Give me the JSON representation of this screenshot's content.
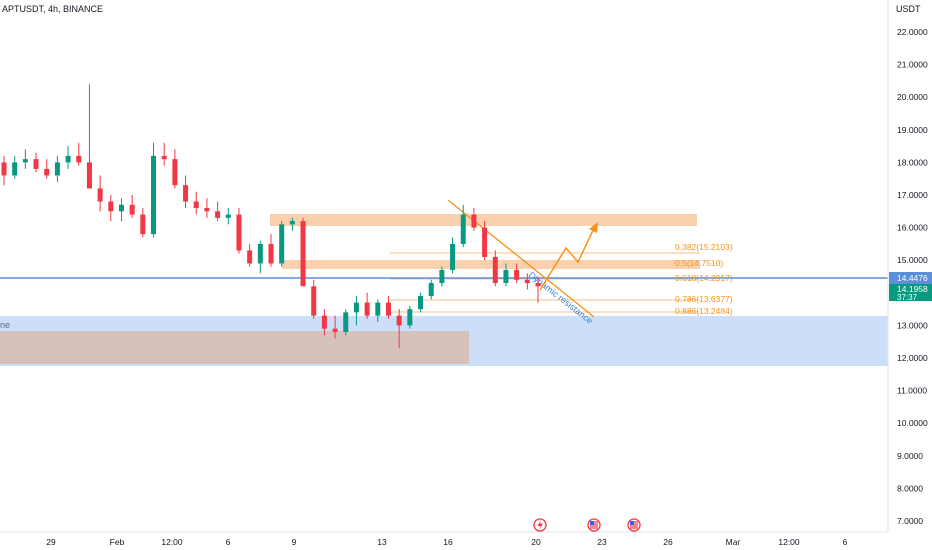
{
  "header": {
    "symbol_title": "APTUSDT, 4h, BINANCE"
  },
  "price_axis": {
    "currency": "USDT",
    "ticks": [
      "22.0000",
      "21.0000",
      "20.0000",
      "19.0000",
      "18.0000",
      "17.0000",
      "16.0000",
      "15.0000",
      "14.0000",
      "13.0000",
      "12.0000",
      "11.0000",
      "10.0000",
      "9.0000",
      "8.0000",
      "7.0000"
    ]
  },
  "price_tags": {
    "blue_line": "14.4476",
    "last_price": "14.1958",
    "countdown": "37:37"
  },
  "time_axis": {
    "ticks": [
      "29",
      "Feb",
      "12:00",
      "6",
      "9",
      "13",
      "16",
      "20",
      "23",
      "26",
      "Mar",
      "12:00",
      "6"
    ]
  },
  "zone_label_partial": "ne",
  "fib_labels": [
    "0.382(15.2103)",
    "0.5(14.7510)",
    "0.618(14.2917)",
    "0.786(13.6377)",
    "0.886(13.2484)"
  ],
  "annotation": "Dynamic resistance",
  "colors": {
    "up": "#089981",
    "down": "#f23645",
    "orange": "#f7931a",
    "zone_orange": "#f8c9a0",
    "zone_blue": "#bcd4f6",
    "zone_brown": "#d8bfb4",
    "blue_line": "#5b8fd9",
    "axis_text": "#131722"
  },
  "chart_data": {
    "type": "candlestick",
    "title": "APTUSDT, 4h, BINANCE",
    "ylabel": "USDT",
    "ylim": [
      6.6,
      22.8
    ],
    "x_ticks": [
      "29",
      "Feb",
      "12:00",
      "6",
      "9",
      "13",
      "16",
      "20",
      "23",
      "26",
      "Mar",
      "12:00",
      "6"
    ],
    "levels": [
      {
        "name": "0.382",
        "value": 15.2103
      },
      {
        "name": "0.5",
        "value": 14.751
      },
      {
        "name": "0.618",
        "value": 14.2917
      },
      {
        "name": "0.786",
        "value": 13.6377
      },
      {
        "name": "0.886",
        "value": 13.2484
      }
    ],
    "horizontal_line": 14.4476,
    "last_price": 14.1958,
    "zones": [
      {
        "name": "resistance",
        "from": 16.05,
        "to": 16.4
      },
      {
        "name": "golden-pocket",
        "from": 14.65,
        "to": 14.9
      },
      {
        "name": "support",
        "from": 11.75,
        "to": 13.25
      },
      {
        "name": "lower",
        "from": 12.0,
        "to": 12.75
      }
    ],
    "ohlc_approx": [
      [
        18.0,
        18.2,
        17.3,
        17.6
      ],
      [
        17.6,
        18.2,
        17.5,
        18.0
      ],
      [
        18.0,
        18.4,
        17.8,
        18.1
      ],
      [
        18.1,
        18.3,
        17.7,
        17.8
      ],
      [
        17.8,
        18.1,
        17.5,
        17.6
      ],
      [
        17.6,
        18.2,
        17.4,
        18.0
      ],
      [
        18.0,
        18.5,
        17.8,
        18.2
      ],
      [
        18.2,
        18.6,
        17.9,
        18.0
      ],
      [
        18.0,
        20.4,
        17.5,
        17.2
      ],
      [
        17.2,
        17.6,
        16.5,
        16.8
      ],
      [
        16.8,
        17.0,
        16.2,
        16.5
      ],
      [
        16.5,
        16.9,
        16.2,
        16.7
      ],
      [
        16.7,
        17.0,
        16.3,
        16.4
      ],
      [
        16.4,
        16.6,
        15.7,
        15.8
      ],
      [
        15.8,
        18.6,
        15.7,
        18.2
      ],
      [
        18.2,
        18.6,
        17.9,
        18.1
      ],
      [
        18.1,
        18.4,
        17.2,
        17.3
      ],
      [
        17.3,
        17.6,
        16.6,
        16.8
      ],
      [
        16.8,
        17.1,
        16.4,
        16.6
      ],
      [
        16.6,
        16.9,
        16.3,
        16.5
      ],
      [
        16.5,
        16.8,
        16.2,
        16.3
      ],
      [
        16.3,
        16.6,
        16.1,
        16.4
      ],
      [
        16.4,
        16.6,
        15.2,
        15.3
      ],
      [
        15.3,
        15.5,
        14.8,
        14.9
      ],
      [
        14.9,
        15.6,
        14.6,
        15.5
      ],
      [
        15.5,
        15.8,
        14.8,
        14.9
      ],
      [
        14.9,
        16.2,
        14.8,
        16.1
      ],
      [
        16.1,
        16.3,
        15.9,
        16.2
      ],
      [
        16.2,
        16.3,
        14.5,
        14.2
      ],
      [
        14.2,
        14.4,
        13.2,
        13.3
      ],
      [
        13.3,
        13.5,
        12.7,
        12.9
      ],
      [
        12.9,
        13.3,
        12.6,
        12.8
      ],
      [
        12.8,
        13.5,
        12.7,
        13.4
      ],
      [
        13.4,
        13.9,
        13.0,
        13.7
      ],
      [
        13.7,
        14.0,
        13.2,
        13.3
      ],
      [
        13.3,
        13.8,
        13.1,
        13.7
      ],
      [
        13.7,
        13.9,
        13.2,
        13.3
      ],
      [
        13.3,
        13.5,
        12.3,
        13.0
      ],
      [
        13.0,
        13.6,
        12.9,
        13.5
      ],
      [
        13.5,
        14.0,
        13.4,
        13.9
      ],
      [
        13.9,
        14.4,
        13.8,
        14.3
      ],
      [
        14.3,
        14.8,
        14.2,
        14.7
      ],
      [
        14.7,
        15.7,
        14.6,
        15.5
      ],
      [
        15.5,
        16.7,
        15.4,
        16.4
      ],
      [
        16.4,
        16.6,
        15.9,
        16.0
      ],
      [
        16.0,
        16.2,
        15.0,
        15.1
      ],
      [
        15.1,
        15.3,
        14.2,
        14.3
      ],
      [
        14.3,
        14.9,
        14.2,
        14.7
      ],
      [
        14.7,
        14.9,
        14.3,
        14.4
      ],
      [
        14.4,
        14.6,
        14.1,
        14.3
      ],
      [
        14.3,
        14.5,
        13.7,
        14.2
      ]
    ]
  }
}
